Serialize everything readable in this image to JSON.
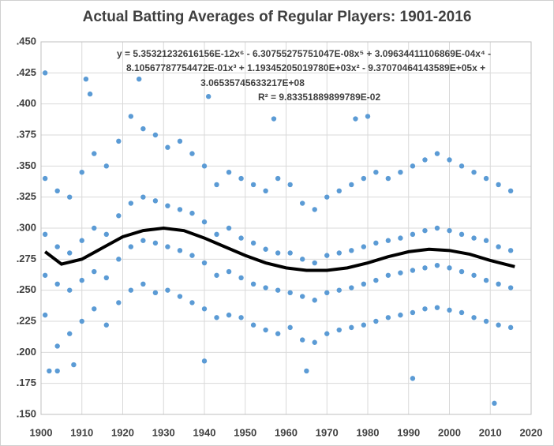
{
  "chart_data": {
    "type": "scatter",
    "title": "Actual Batting Averages of Regular Players: 1901-2016",
    "annotations": [
      "y = 5.35321232616156E-12x⁶  - 6.30755275751047E-08x⁵  + 3.09634411106869E-04x⁴  -",
      "8.10567787754472E-01x³  + 1.19345205019780E+03x²  - 9.37070464143589E+05x  +",
      "3.06535745633217E+08",
      "R² = 9.83351889899789E-02"
    ],
    "xlim": [
      1900,
      2020
    ],
    "xticks": [
      1900,
      1910,
      1920,
      1930,
      1940,
      1950,
      1960,
      1970,
      1980,
      1990,
      2000,
      2010,
      2020
    ],
    "ylim": [
      0.15,
      0.45
    ],
    "yticks": [
      {
        "value": 0.15,
        "label": ".150"
      },
      {
        "value": 0.175,
        "label": ".175"
      },
      {
        "value": 0.2,
        "label": ".200"
      },
      {
        "value": 0.225,
        "label": ".225"
      },
      {
        "value": 0.25,
        "label": ".250"
      },
      {
        "value": 0.275,
        "label": ".275"
      },
      {
        "value": 0.3,
        "label": ".300"
      },
      {
        "value": 0.325,
        "label": ".325"
      },
      {
        "value": 0.35,
        "label": ".350"
      },
      {
        "value": 0.375,
        "label": ".375"
      },
      {
        "value": 0.4,
        "label": ".400"
      },
      {
        "value": 0.425,
        "label": ".425"
      },
      {
        "value": 0.45,
        "label": ".450"
      }
    ],
    "grid": true,
    "series": [
      {
        "color": "#5b9bd5",
        "x": [
          1901,
          1901,
          1901,
          1901,
          1904,
          1904,
          1904,
          1904,
          1907,
          1907,
          1907,
          1907,
          1910,
          1910,
          1910,
          1910,
          1913,
          1913,
          1913,
          1913,
          1916,
          1916,
          1916,
          1916,
          1919,
          1919,
          1919,
          1919,
          1922,
          1922,
          1922,
          1922,
          1925,
          1925,
          1925,
          1925,
          1928,
          1928,
          1928,
          1928,
          1931,
          1931,
          1931,
          1931,
          1934,
          1934,
          1934,
          1934,
          1937,
          1937,
          1937,
          1937,
          1940,
          1940,
          1940,
          1940,
          1943,
          1943,
          1943,
          1943,
          1946,
          1946,
          1946,
          1946,
          1949,
          1949,
          1949,
          1949,
          1952,
          1952,
          1952,
          1952,
          1955,
          1955,
          1955,
          1955,
          1958,
          1958,
          1958,
          1958,
          1961,
          1961,
          1961,
          1961,
          1964,
          1964,
          1964,
          1964,
          1967,
          1967,
          1967,
          1967,
          1970,
          1970,
          1970,
          1970,
          1973,
          1973,
          1973,
          1973,
          1976,
          1976,
          1976,
          1976,
          1979,
          1979,
          1979,
          1979,
          1982,
          1982,
          1982,
          1982,
          1985,
          1985,
          1985,
          1985,
          1988,
          1988,
          1988,
          1988,
          1991,
          1991,
          1991,
          1991,
          1994,
          1994,
          1994,
          1994,
          1997,
          1997,
          1997,
          1997,
          2000,
          2000,
          2000,
          2000,
          2003,
          2003,
          2003,
          2003,
          2006,
          2006,
          2006,
          2006,
          2009,
          2009,
          2009,
          2009,
          2012,
          2012,
          2012,
          2012,
          2015,
          2015,
          2015,
          2015,
          1901,
          1902,
          1904,
          1911,
          1912,
          1924,
          1941,
          1957,
          1977,
          1980,
          1991,
          2011,
          1908,
          1940,
          1965
        ],
        "values": [
          0.34,
          0.295,
          0.262,
          0.23,
          0.33,
          0.285,
          0.255,
          0.205,
          0.325,
          0.28,
          0.25,
          0.215,
          0.345,
          0.29,
          0.258,
          0.225,
          0.36,
          0.3,
          0.265,
          0.235,
          0.35,
          0.295,
          0.26,
          0.222,
          0.37,
          0.31,
          0.275,
          0.24,
          0.39,
          0.32,
          0.285,
          0.25,
          0.38,
          0.325,
          0.29,
          0.255,
          0.375,
          0.322,
          0.288,
          0.248,
          0.365,
          0.318,
          0.285,
          0.25,
          0.37,
          0.315,
          0.282,
          0.245,
          0.36,
          0.312,
          0.278,
          0.24,
          0.35,
          0.305,
          0.272,
          0.235,
          0.335,
          0.295,
          0.262,
          0.228,
          0.345,
          0.3,
          0.265,
          0.23,
          0.34,
          0.292,
          0.26,
          0.228,
          0.335,
          0.288,
          0.255,
          0.222,
          0.33,
          0.283,
          0.252,
          0.218,
          0.34,
          0.28,
          0.25,
          0.215,
          0.335,
          0.28,
          0.248,
          0.22,
          0.32,
          0.275,
          0.245,
          0.21,
          0.315,
          0.272,
          0.242,
          0.208,
          0.325,
          0.278,
          0.248,
          0.215,
          0.33,
          0.28,
          0.25,
          0.218,
          0.335,
          0.282,
          0.252,
          0.22,
          0.34,
          0.285,
          0.255,
          0.222,
          0.345,
          0.288,
          0.258,
          0.225,
          0.34,
          0.29,
          0.262,
          0.228,
          0.345,
          0.292,
          0.264,
          0.23,
          0.35,
          0.295,
          0.266,
          0.232,
          0.355,
          0.298,
          0.268,
          0.235,
          0.36,
          0.3,
          0.27,
          0.236,
          0.355,
          0.298,
          0.268,
          0.234,
          0.35,
          0.295,
          0.265,
          0.232,
          0.345,
          0.292,
          0.262,
          0.228,
          0.34,
          0.29,
          0.258,
          0.225,
          0.335,
          0.285,
          0.255,
          0.222,
          0.33,
          0.282,
          0.252,
          0.22,
          0.425,
          0.185,
          0.185,
          0.42,
          0.408,
          0.42,
          0.406,
          0.388,
          0.388,
          0.39,
          0.179,
          0.159,
          0.19,
          0.193,
          0.185
        ]
      }
    ],
    "trendline": {
      "color": "#000000",
      "x": [
        1901,
        1905,
        1910,
        1915,
        1920,
        1925,
        1930,
        1935,
        1940,
        1945,
        1950,
        1955,
        1960,
        1965,
        1970,
        1975,
        1980,
        1985,
        1990,
        1995,
        2000,
        2005,
        2010,
        2016
      ],
      "values": [
        0.281,
        0.271,
        0.275,
        0.284,
        0.293,
        0.298,
        0.3,
        0.298,
        0.292,
        0.285,
        0.278,
        0.272,
        0.268,
        0.266,
        0.266,
        0.268,
        0.272,
        0.277,
        0.281,
        0.283,
        0.282,
        0.279,
        0.274,
        0.269
      ]
    }
  }
}
